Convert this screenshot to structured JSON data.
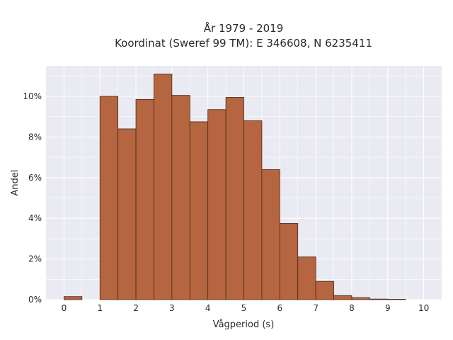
{
  "chart_data": {
    "type": "bar",
    "title_lines": [
      "År 1979 - 2019",
      "Koordinat (Sweref 99 TM): E 346608, N 6235411"
    ],
    "xlabel": "Vågperiod (s)",
    "ylabel": "Andel",
    "bin_width": 0.5,
    "bin_starts": [
      0,
      0.5,
      1,
      1.5,
      2,
      2.5,
      3,
      3.5,
      4,
      4.5,
      5,
      5.5,
      6,
      6.5,
      7,
      7.5,
      8,
      8.5,
      9
    ],
    "values": [
      0.15,
      0,
      10.0,
      8.4,
      9.85,
      11.1,
      10.05,
      8.75,
      9.35,
      9.95,
      8.8,
      6.4,
      3.75,
      2.1,
      0.9,
      0.2,
      0.1,
      0.03,
      0.02
    ],
    "xlim": [
      -0.5,
      10.5
    ],
    "ylim": [
      0,
      11.5
    ],
    "xticks": [
      0,
      1,
      2,
      3,
      4,
      5,
      6,
      7,
      8,
      9,
      10
    ],
    "xtick_labels": [
      "0",
      "1",
      "2",
      "3",
      "4",
      "5",
      "6",
      "7",
      "8",
      "9",
      "10"
    ],
    "yticks": [
      0,
      2,
      4,
      6,
      8,
      10
    ],
    "ytick_labels": [
      "0%",
      "2%",
      "4%",
      "6%",
      "8%",
      "10%"
    ],
    "grid": true,
    "colors": {
      "bar_fill": "#b5653f",
      "bar_edge": "#4a2a1a",
      "plot_background": "#eaeaf2",
      "grid": "#ffffff"
    }
  }
}
